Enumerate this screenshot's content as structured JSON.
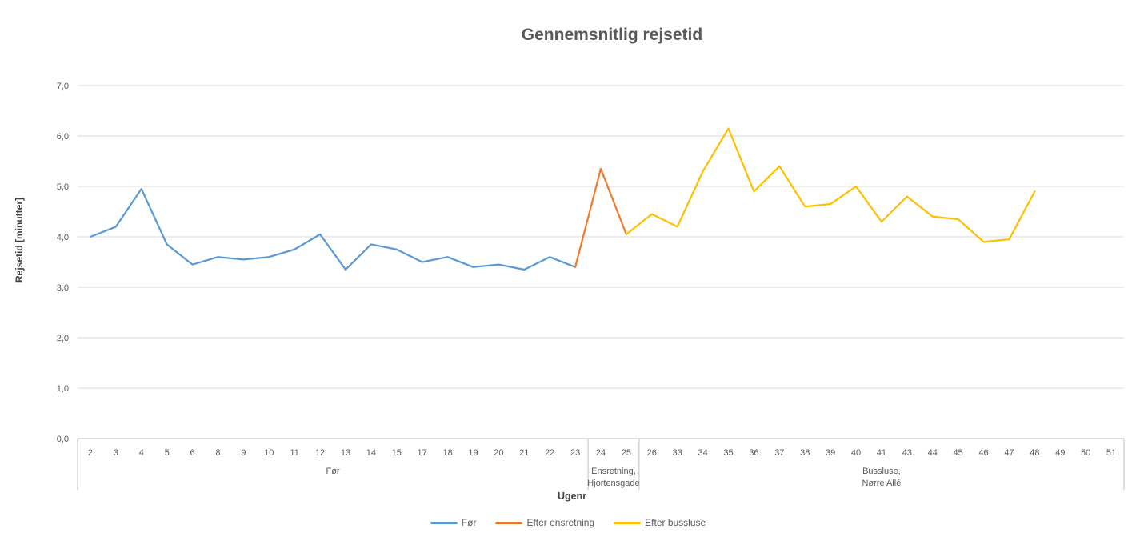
{
  "title": "Gennemsnitlig rejsetid",
  "y_axis_title": "Rejsetid [minutter]",
  "x_axis_title": "Ugenr",
  "colors": {
    "grid": "#D9D9D9",
    "axis": "#BFBFBF",
    "tick_text": "#595959",
    "title_text": "#595959"
  },
  "chart_data": {
    "type": "line",
    "title": "Gennemsnitlig rejsetid",
    "xlabel": "Ugenr",
    "ylabel": "Rejsetid [minutter]",
    "ylim": [
      0,
      7
    ],
    "y_tick_step": 1,
    "y_tick_labels": [
      "0,0",
      "1,0",
      "2,0",
      "3,0",
      "4,0",
      "5,0",
      "6,0",
      "7,0"
    ],
    "grid": "horizontal",
    "legend_position": "bottom",
    "categories": [
      "2",
      "3",
      "4",
      "5",
      "6",
      "8",
      "9",
      "10",
      "11",
      "12",
      "13",
      "14",
      "15",
      "17",
      "18",
      "19",
      "20",
      "21",
      "22",
      "23",
      "24",
      "25",
      "26",
      "33",
      "34",
      "35",
      "36",
      "37",
      "38",
      "39",
      "40",
      "41",
      "43",
      "44",
      "45",
      "46",
      "47",
      "48",
      "49",
      "50",
      "51"
    ],
    "category_groups": [
      {
        "lines": [
          "Før"
        ],
        "start_index": 0,
        "end_index": 19
      },
      {
        "lines": [
          "Ensretning,",
          "Hjortensgade"
        ],
        "start_index": 20,
        "end_index": 21
      },
      {
        "lines": [
          "Bussluse,",
          "Nørre Allé"
        ],
        "start_index": 22,
        "end_index": 40
      }
    ],
    "series": [
      {
        "name": "Før",
        "color": "#5B9BD5",
        "values": [
          4,
          4.2,
          4.95,
          3.85,
          3.45,
          3.6,
          3.55,
          3.6,
          3.75,
          4.05,
          3.35,
          3.85,
          3.75,
          3.5,
          3.6,
          3.4,
          3.45,
          3.35,
          3.6,
          3.4,
          null,
          null,
          null,
          null,
          null,
          null,
          null,
          null,
          null,
          null,
          null,
          null,
          null,
          null,
          null,
          null,
          null,
          null,
          null,
          null,
          null
        ]
      },
      {
        "name": "Efter ensretning",
        "color": "#ED7D31",
        "values": [
          null,
          null,
          null,
          null,
          null,
          null,
          null,
          null,
          null,
          null,
          null,
          null,
          null,
          null,
          null,
          null,
          null,
          null,
          null,
          3.4,
          5.35,
          4.05,
          null,
          null,
          null,
          null,
          null,
          null,
          null,
          null,
          null,
          null,
          null,
          null,
          null,
          null,
          null,
          null,
          null,
          null,
          null
        ]
      },
      {
        "name": "Efter bussluse",
        "color": "#FFC000",
        "values": [
          null,
          null,
          null,
          null,
          null,
          null,
          null,
          null,
          null,
          null,
          null,
          null,
          null,
          null,
          null,
          null,
          null,
          null,
          null,
          null,
          null,
          4.05,
          4.45,
          4.2,
          5.3,
          6.15,
          4.9,
          5.4,
          4.6,
          4.65,
          5,
          4.3,
          4.8,
          4.4,
          4.35,
          3.9,
          3.95,
          4.9,
          null,
          null,
          null
        ]
      }
    ]
  }
}
